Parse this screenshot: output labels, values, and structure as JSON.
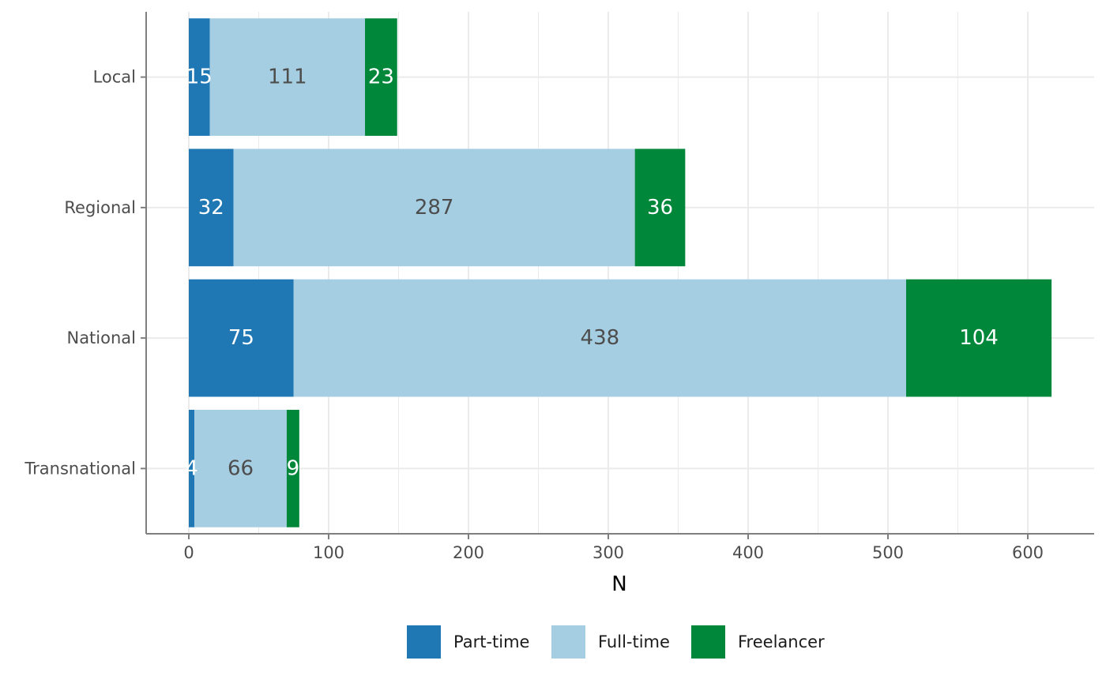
{
  "chart_data": {
    "type": "bar",
    "orientation": "horizontal",
    "stacked": true,
    "categories": [
      "Local",
      "Regional",
      "National",
      "Transnational"
    ],
    "series": [
      {
        "name": "Part-time",
        "values": [
          15,
          32,
          75,
          4
        ],
        "color": "#1f78b4",
        "label_color": "#ffffff"
      },
      {
        "name": "Full-time",
        "values": [
          111,
          287,
          438,
          66
        ],
        "color": "#a6cee3",
        "label_color": "#4d4d4d"
      },
      {
        "name": "Freelancer",
        "values": [
          23,
          36,
          104,
          9
        ],
        "color": "#00873a",
        "label_color": "#ffffff"
      }
    ],
    "xlabel": "N",
    "ylabel": "",
    "xlim": [
      -30,
      645
    ],
    "x_ticks": [
      "0",
      "100",
      "200",
      "300",
      "400",
      "500",
      "600"
    ],
    "grid": true,
    "legend_position": "bottom"
  }
}
